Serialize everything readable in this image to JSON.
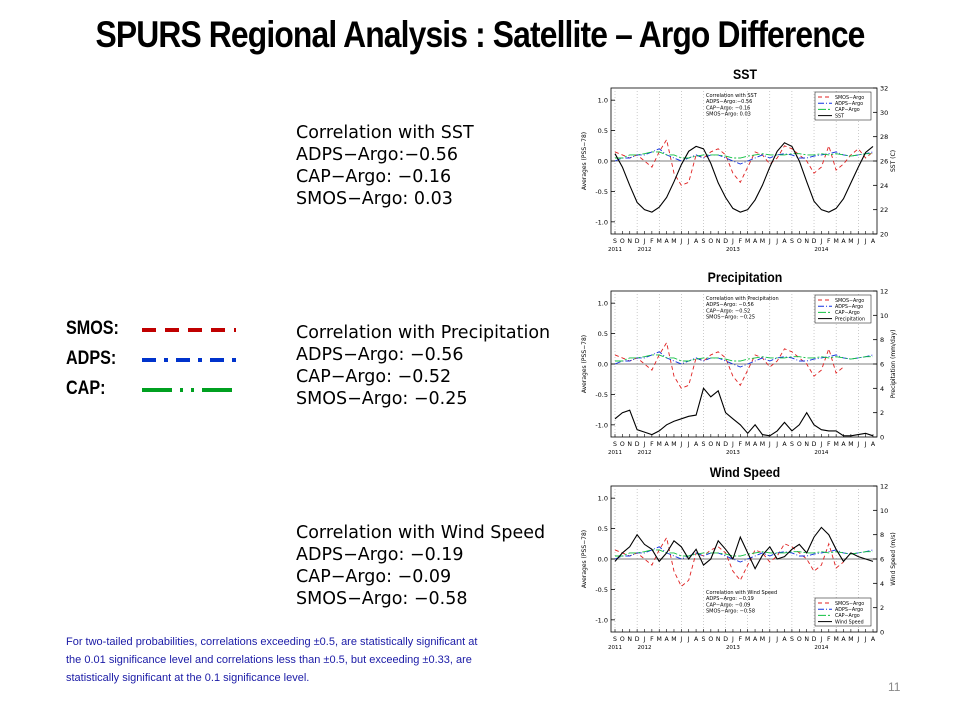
{
  "title": "SPURS Regional Analysis :  Satellite – Argo Difference",
  "legend": [
    {
      "label": "SMOS:",
      "color": "#c00000",
      "style": "dashed"
    },
    {
      "label": "ADPS:",
      "color": "#0033cc",
      "style": "dash-dot"
    },
    {
      "label": "CAP:",
      "color": "#00a020",
      "style": "long-dash-dot"
    }
  ],
  "correlations": [
    {
      "title": "Correlation with SST",
      "lines": [
        "ADPS−Argo:−0.56",
        "CAP−Argo: −0.16",
        "SMOS−Argo: 0.03"
      ]
    },
    {
      "title": "Correlation with Precipitation",
      "lines": [
        "ADPS−Argo: −0.56",
        "CAP−Argo: −0.52",
        "SMOS−Argo: −0.25"
      ]
    },
    {
      "title": "Correlation with Wind Speed",
      "lines": [
        "ADPS−Argo: −0.19",
        "CAP−Argo: −0.09",
        "SMOS−Argo: −0.58"
      ]
    }
  ],
  "footnote": "For two-tailed probabilities, correlations exceeding ±0.5, are statistically significant at the 0.01 significance level and correlations less than ±0.5, but exceeding  ±0.33, are statistically significant at the 0.1 significance level.",
  "page_number": "11",
  "chart_data": [
    {
      "type": "line",
      "panel_label": "SST",
      "months": [
        "S",
        "O",
        "N",
        "D",
        "J",
        "F",
        "M",
        "A",
        "M",
        "J",
        "J",
        "A",
        "S",
        "O",
        "N",
        "D",
        "J",
        "F",
        "M",
        "A",
        "M",
        "J",
        "J",
        "A",
        "S",
        "O",
        "N",
        "D",
        "J",
        "F",
        "M",
        "A",
        "M",
        "J",
        "J",
        "A"
      ],
      "years": [
        "2011",
        "2012",
        "2013",
        "2014"
      ],
      "ylabel": "Averages (PSS−78)",
      "y2label": "SST (C)",
      "ylim": [
        -1.2,
        1.2
      ],
      "yticks": [
        -1.0,
        -0.5,
        0.0,
        0.5,
        1.0
      ],
      "y2lim": [
        20,
        32
      ],
      "y2ticks": [
        20,
        22,
        24,
        26,
        28,
        30,
        32
      ],
      "inset_legend": [
        "Correlation with SST",
        "ADPS−Argo:−0.56",
        "CAP−Argo: −0.16",
        "SMOS−Argo: 0.03"
      ],
      "series_legend": [
        "SMOS−Argo",
        "ADPS−Argo",
        "CAP−Argo",
        "SST"
      ],
      "series": [
        {
          "name": "SMOS−Argo",
          "color": "#e02020",
          "dash": "4,3",
          "axis": "left",
          "values": [
            0.15,
            0.1,
            0.05,
            0.1,
            0.0,
            -0.1,
            0.15,
            0.35,
            -0.2,
            -0.4,
            -0.35,
            0.1,
            0.05,
            0.15,
            0.2,
            0.1,
            -0.2,
            -0.35,
            -0.1,
            0.15,
            0.1,
            -0.05,
            0.05,
            0.25,
            0.2,
            0.1,
            0.0,
            -0.2,
            -0.1,
            0.25,
            -0.15,
            -0.05,
            0.1,
            0.2,
            0.05,
            0.15
          ]
        },
        {
          "name": "ADPS−Argo",
          "color": "#1030e0",
          "dash": "6,2,1,2",
          "axis": "left",
          "values": [
            0.0,
            0.05,
            0.05,
            0.1,
            0.1,
            0.15,
            0.2,
            0.1,
            0.05,
            0.0,
            0.05,
            0.1,
            0.05,
            0.1,
            0.1,
            0.05,
            0.0,
            -0.05,
            0.0,
            0.05,
            0.1,
            0.05,
            0.1,
            0.12,
            0.1,
            0.05,
            0.05,
            0.08,
            0.1,
            0.12,
            0.15,
            0.1,
            0.08,
            0.1,
            0.12,
            0.15
          ]
        },
        {
          "name": "CAP−Argo",
          "color": "#10c040",
          "dash": "8,2,2,2",
          "axis": "left",
          "values": [
            0.05,
            0.05,
            0.1,
            0.1,
            0.12,
            0.15,
            0.15,
            0.1,
            0.1,
            0.05,
            0.05,
            0.08,
            0.1,
            0.1,
            0.1,
            0.08,
            0.05,
            0.05,
            0.08,
            0.1,
            0.12,
            0.1,
            0.1,
            0.1,
            0.12,
            0.12,
            0.1,
            0.1,
            0.12,
            0.1,
            0.12,
            0.1,
            0.08,
            0.1,
            0.12,
            0.12
          ]
        },
        {
          "name": "SST",
          "color": "#000000",
          "dash": "",
          "axis": "right",
          "values": [
            26.6,
            25.5,
            24.0,
            22.6,
            22.0,
            21.8,
            22.2,
            23.0,
            24.3,
            25.7,
            26.8,
            27.2,
            27.0,
            25.8,
            24.2,
            23.0,
            22.1,
            21.8,
            22.0,
            22.8,
            24.0,
            25.5,
            26.8,
            27.5,
            27.2,
            26.0,
            24.3,
            22.7,
            22.0,
            21.8,
            22.1,
            22.9,
            24.2,
            25.5,
            26.7,
            27.2
          ]
        }
      ]
    },
    {
      "type": "line",
      "panel_label": "Precipitation",
      "months": [
        "S",
        "O",
        "N",
        "D",
        "J",
        "F",
        "M",
        "A",
        "M",
        "J",
        "J",
        "A",
        "S",
        "O",
        "N",
        "D",
        "J",
        "F",
        "M",
        "A",
        "M",
        "J",
        "J",
        "A",
        "S",
        "O",
        "N",
        "D",
        "J",
        "F",
        "M",
        "A",
        "M",
        "J",
        "J",
        "A"
      ],
      "years": [
        "2011",
        "2012",
        "2013",
        "2014"
      ],
      "ylabel": "Averages (PSS−78)",
      "y2label": "Precipitation (mm/day)",
      "ylim": [
        -1.2,
        1.2
      ],
      "yticks": [
        -1.0,
        -0.5,
        0.0,
        0.5,
        1.0
      ],
      "y2lim": [
        0,
        12
      ],
      "y2ticks": [
        0,
        2,
        4,
        6,
        8,
        10,
        12
      ],
      "inset_legend": [
        "Correlation with Precipitation",
        "ADPS−Argo: −0.56",
        "CAP−Argo: −0.52",
        "SMOS−Argo: −0.25"
      ],
      "series_legend": [
        "SMOS−Argo",
        "ADPS−Argo",
        "CAP−Argo",
        "Precipitation"
      ],
      "series": [
        {
          "name": "SMOS−Argo",
          "color": "#e02020",
          "dash": "4,3",
          "axis": "left",
          "values": [
            0.15,
            0.1,
            0.05,
            0.1,
            0.0,
            -0.1,
            0.15,
            0.35,
            -0.2,
            -0.4,
            -0.35,
            0.1,
            0.05,
            0.15,
            0.2,
            0.1,
            -0.2,
            -0.35,
            -0.1,
            0.15,
            0.1,
            -0.05,
            0.05,
            0.25,
            0.2,
            0.1,
            0.0,
            -0.2,
            -0.1,
            0.25,
            -0.15,
            -0.05,
            null,
            null,
            null,
            null
          ]
        },
        {
          "name": "ADPS−Argo",
          "color": "#1030e0",
          "dash": "6,2,1,2",
          "axis": "left",
          "values": [
            0.0,
            0.05,
            0.05,
            0.1,
            0.1,
            0.15,
            0.2,
            0.1,
            0.05,
            0.0,
            0.05,
            0.1,
            0.05,
            0.1,
            0.1,
            0.05,
            0.0,
            -0.05,
            0.0,
            0.05,
            0.1,
            0.05,
            0.1,
            0.12,
            0.1,
            0.05,
            0.05,
            0.08,
            0.1,
            0.12,
            0.15,
            0.1,
            0.08,
            0.1,
            0.12,
            0.15
          ]
        },
        {
          "name": "CAP−Argo",
          "color": "#10c040",
          "dash": "8,2,2,2",
          "axis": "left",
          "values": [
            0.05,
            0.05,
            0.1,
            0.1,
            0.12,
            0.15,
            0.15,
            0.1,
            0.1,
            0.05,
            0.05,
            0.08,
            0.1,
            0.1,
            0.1,
            0.08,
            0.05,
            0.05,
            0.08,
            0.1,
            0.12,
            0.1,
            0.1,
            0.1,
            0.12,
            0.12,
            0.1,
            0.1,
            0.12,
            0.1,
            0.12,
            0.1,
            0.08,
            0.1,
            0.12,
            0.12
          ]
        },
        {
          "name": "Precipitation",
          "color": "#000000",
          "dash": "",
          "axis": "right",
          "values": [
            1.5,
            2.0,
            2.2,
            0.6,
            0.4,
            0.2,
            0.5,
            1.0,
            1.3,
            1.5,
            1.7,
            1.8,
            4.0,
            3.3,
            3.8,
            2.0,
            1.5,
            1.0,
            0.3,
            1.0,
            0.2,
            0.1,
            0.5,
            1.2,
            0.5,
            1.0,
            2.0,
            1.0,
            0.6,
            0.5,
            0.5,
            0.1,
            0.1,
            0.2,
            0.3,
            0.1
          ]
        }
      ]
    },
    {
      "type": "line",
      "panel_label": "Wind Speed",
      "months": [
        "S",
        "O",
        "N",
        "D",
        "J",
        "F",
        "M",
        "A",
        "M",
        "J",
        "J",
        "A",
        "S",
        "O",
        "N",
        "D",
        "J",
        "F",
        "M",
        "A",
        "M",
        "J",
        "J",
        "A",
        "S",
        "O",
        "N",
        "D",
        "J",
        "F",
        "M",
        "A",
        "M",
        "J",
        "J",
        "A"
      ],
      "years": [
        "2011",
        "2012",
        "2013",
        "2014"
      ],
      "ylabel": "Averages (PSS−78)",
      "y2label": "Wind Speed (m/s)",
      "ylim": [
        -1.2,
        1.2
      ],
      "yticks": [
        -1.0,
        -0.5,
        0.0,
        0.5,
        1.0
      ],
      "y2lim": [
        0,
        12
      ],
      "y2ticks": [
        0,
        2,
        4,
        6,
        8,
        10,
        12
      ],
      "inset_legend": [
        "Correlation with Wind Speed",
        "ADPS−Argo: −0.19",
        "CAP−Argo: −0.09",
        "SMOS−Argo: −0.58"
      ],
      "series_legend": [
        "SMOS−Argo",
        "ADPS−Argo",
        "CAP−Argo",
        "Wind Speed"
      ],
      "series": [
        {
          "name": "SMOS−Argo",
          "color": "#e02020",
          "dash": "4,3",
          "axis": "left",
          "values": [
            0.15,
            0.1,
            0.05,
            0.1,
            0.0,
            -0.1,
            0.15,
            0.35,
            -0.2,
            -0.45,
            -0.35,
            0.1,
            0.05,
            0.15,
            0.2,
            0.1,
            -0.2,
            -0.35,
            -0.1,
            0.15,
            0.1,
            -0.05,
            0.05,
            0.25,
            0.2,
            0.1,
            0.0,
            -0.2,
            -0.1,
            0.25,
            -0.15,
            -0.05,
            null,
            null,
            null,
            null
          ]
        },
        {
          "name": "ADPS−Argo",
          "color": "#1030e0",
          "dash": "6,2,1,2",
          "axis": "left",
          "values": [
            0.0,
            0.05,
            0.05,
            0.1,
            0.1,
            0.15,
            0.2,
            0.1,
            0.05,
            0.0,
            0.05,
            0.1,
            0.05,
            0.1,
            0.1,
            0.05,
            0.0,
            -0.05,
            0.0,
            0.05,
            0.1,
            0.05,
            0.1,
            0.12,
            0.1,
            0.05,
            0.05,
            0.08,
            0.1,
            0.12,
            0.15,
            0.1,
            0.08,
            0.1,
            0.12,
            0.15
          ]
        },
        {
          "name": "CAP−Argo",
          "color": "#10c040",
          "dash": "8,2,2,2",
          "axis": "left",
          "values": [
            0.05,
            0.05,
            0.1,
            0.1,
            0.12,
            0.15,
            0.15,
            0.1,
            0.1,
            0.05,
            0.05,
            0.08,
            0.1,
            0.1,
            0.1,
            0.08,
            0.05,
            0.05,
            0.08,
            0.1,
            0.12,
            0.1,
            0.1,
            0.1,
            0.12,
            0.12,
            0.1,
            0.1,
            0.12,
            0.1,
            0.12,
            0.1,
            0.08,
            0.1,
            0.12,
            0.12
          ]
        },
        {
          "name": "Wind Speed",
          "color": "#000000",
          "dash": "",
          "axis": "right",
          "values": [
            5.8,
            6.5,
            7.0,
            8.0,
            7.2,
            6.8,
            5.8,
            6.5,
            7.5,
            7.0,
            6.0,
            6.8,
            5.5,
            6.0,
            7.5,
            6.8,
            6.0,
            7.8,
            6.5,
            5.2,
            6.3,
            7.0,
            6.0,
            6.2,
            6.8,
            7.2,
            6.5,
            7.8,
            8.6,
            8.0,
            6.8,
            5.8,
            6.5,
            6.2,
            6.0,
            5.8
          ]
        }
      ]
    }
  ]
}
